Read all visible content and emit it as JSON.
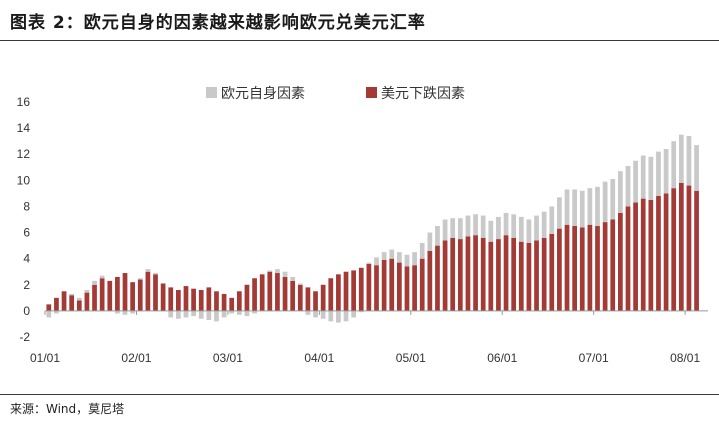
{
  "title": "图表 2：欧元自身的因素越来越影响欧元兑美元汇率",
  "source": "来源：Wind，莫尼塔",
  "colors": {
    "series1": "#c9c9c9",
    "series2": "#a33a35",
    "axis": "#999999"
  },
  "chart_data": {
    "type": "bar",
    "stacked": true,
    "title": "",
    "xlabel": "",
    "ylabel": "",
    "ylim": [
      -2,
      16
    ],
    "yticks": [
      -2,
      0,
      2,
      4,
      6,
      8,
      10,
      12,
      14,
      16
    ],
    "xlim": [
      0,
      87
    ],
    "xtick_positions": [
      0,
      12,
      24,
      36,
      48,
      60,
      72,
      84
    ],
    "xtick_labels": [
      "01/01",
      "02/01",
      "03/01",
      "04/01",
      "05/01",
      "06/01",
      "07/01",
      "08/01"
    ],
    "legend_position": "top",
    "x": [
      0,
      1,
      2,
      3,
      4,
      5,
      6,
      7,
      8,
      9,
      10,
      11,
      12,
      13,
      14,
      15,
      16,
      17,
      18,
      19,
      20,
      21,
      22,
      23,
      24,
      25,
      26,
      27,
      28,
      29,
      30,
      31,
      32,
      33,
      34,
      35,
      36,
      37,
      38,
      39,
      40,
      41,
      42,
      43,
      44,
      45,
      46,
      47,
      48,
      49,
      50,
      51,
      52,
      53,
      54,
      55,
      56,
      57,
      58,
      59,
      60,
      61,
      62,
      63,
      64,
      65,
      66,
      67,
      68,
      69,
      70,
      71,
      72,
      73,
      74,
      75,
      76,
      77,
      78,
      79,
      80,
      81,
      82,
      83,
      84,
      85
    ],
    "series": [
      {
        "name": "欧元自身因素",
        "values": [
          -0.5,
          -0.2,
          0.0,
          0.1,
          0.2,
          0.2,
          0.3,
          0.2,
          0.0,
          -0.2,
          -0.3,
          -0.2,
          0.1,
          0.2,
          0.1,
          0.0,
          -0.5,
          -0.6,
          -0.5,
          -0.4,
          -0.6,
          -0.7,
          -0.8,
          -0.5,
          -0.2,
          -0.3,
          -0.4,
          -0.2,
          0.0,
          0.1,
          0.3,
          0.4,
          0.3,
          0.1,
          -0.3,
          -0.5,
          -0.6,
          -0.8,
          -0.9,
          -0.8,
          -0.5,
          -0.1,
          0.1,
          0.6,
          0.6,
          0.7,
          0.8,
          0.9,
          1.0,
          1.2,
          1.4,
          1.5,
          1.6,
          1.5,
          1.6,
          1.6,
          1.6,
          1.7,
          1.6,
          1.7,
          1.7,
          1.8,
          1.9,
          1.8,
          1.9,
          2.0,
          2.1,
          2.4,
          2.7,
          2.8,
          2.8,
          2.8,
          3.0,
          3.1,
          3.1,
          3.2,
          3.1,
          3.2,
          3.3,
          3.3,
          3.4,
          3.4,
          3.6,
          3.7,
          3.8,
          3.5
        ]
      },
      {
        "name": "美元下跌因素",
        "values": [
          0.5,
          1.0,
          1.5,
          1.2,
          0.8,
          1.4,
          2.0,
          2.5,
          2.3,
          2.6,
          2.9,
          2.2,
          2.4,
          3.0,
          2.8,
          2.1,
          1.8,
          1.6,
          1.9,
          1.7,
          1.6,
          1.8,
          1.5,
          1.3,
          1.0,
          1.5,
          2.0,
          2.5,
          2.8,
          3.0,
          2.9,
          2.6,
          2.3,
          2.0,
          1.8,
          1.5,
          2.0,
          2.5,
          2.8,
          3.0,
          3.1,
          3.3,
          3.6,
          3.5,
          3.9,
          4.0,
          3.7,
          3.4,
          3.5,
          4.0,
          4.6,
          5.0,
          5.4,
          5.6,
          5.5,
          5.7,
          5.8,
          5.6,
          5.3,
          5.5,
          5.8,
          5.6,
          5.3,
          5.2,
          5.4,
          5.6,
          5.9,
          6.3,
          6.6,
          6.5,
          6.4,
          6.6,
          6.5,
          6.8,
          7.0,
          7.5,
          8.0,
          8.3,
          8.6,
          8.5,
          8.8,
          9.0,
          9.4,
          9.8,
          9.6,
          9.2
        ]
      }
    ]
  }
}
